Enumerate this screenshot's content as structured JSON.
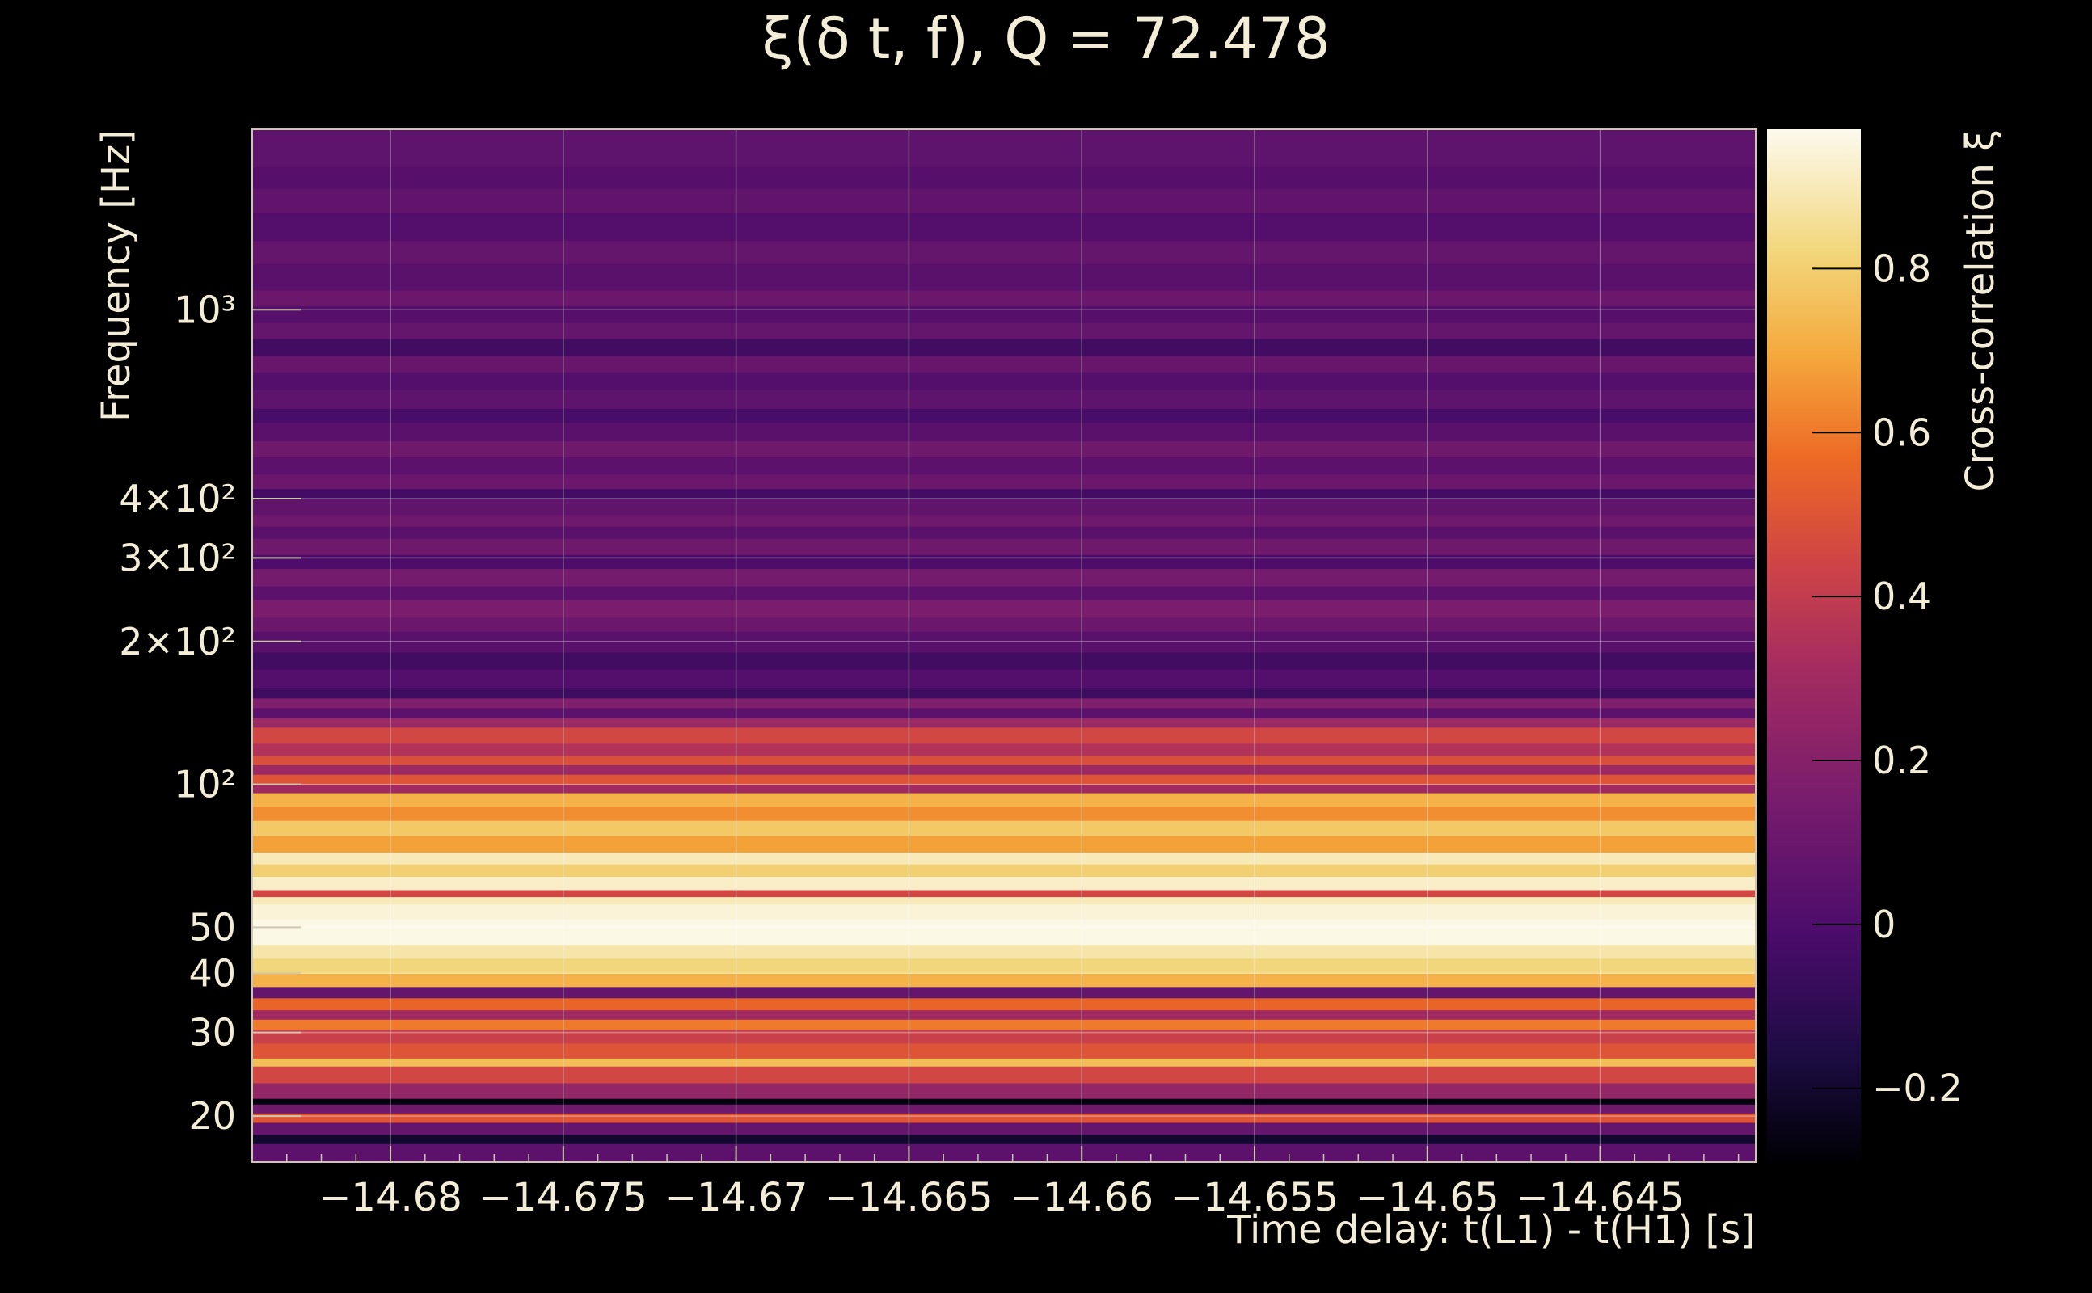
{
  "chart_data": {
    "type": "heatmap",
    "title": "ξ(δ t, f), Q = 72.478",
    "xlabel": "Time delay: t(L1) - t(H1) [s]",
    "ylabel": "Frequency [Hz]",
    "colorbar_label": "Cross-correlation ξ",
    "x_scale": "linear",
    "y_scale": "log",
    "xlim": [
      -14.684,
      -14.6405
    ],
    "ylim": [
      16,
      2400
    ],
    "x_ticks": [
      {
        "value": -14.68,
        "label": "−14.68"
      },
      {
        "value": -14.675,
        "label": "−14.675"
      },
      {
        "value": -14.67,
        "label": "−14.67"
      },
      {
        "value": -14.665,
        "label": "−14.665"
      },
      {
        "value": -14.66,
        "label": "−14.66"
      },
      {
        "value": -14.655,
        "label": "−14.655"
      },
      {
        "value": -14.65,
        "label": "−14.65"
      },
      {
        "value": -14.645,
        "label": "−14.645"
      }
    ],
    "y_ticks": [
      {
        "value": 20,
        "label": "20"
      },
      {
        "value": 30,
        "label": "30"
      },
      {
        "value": 40,
        "label": "40"
      },
      {
        "value": 50,
        "label": "50"
      },
      {
        "value": 100,
        "label": "10²"
      },
      {
        "value": 200,
        "label": "2×10²"
      },
      {
        "value": 300,
        "label": "3×10²"
      },
      {
        "value": 400,
        "label": "4×10²"
      },
      {
        "value": 1000,
        "label": "10³"
      }
    ],
    "colorbar_range": [
      -0.29,
      0.97
    ],
    "colorbar_ticks": [
      {
        "value": -0.2,
        "label": "−0.2"
      },
      {
        "value": 0,
        "label": "0"
      },
      {
        "value": 0.2,
        "label": "0.2"
      },
      {
        "value": 0.4,
        "label": "0.4"
      },
      {
        "value": 0.6,
        "label": "0.6"
      },
      {
        "value": 0.8,
        "label": "0.8"
      }
    ],
    "colormap": "inferno-like",
    "grid": true,
    "bands": [
      {
        "f_low": 16,
        "f_high": 17.5,
        "value": 0.05
      },
      {
        "f_low": 17.5,
        "f_high": 18.3,
        "value": -0.2
      },
      {
        "f_low": 18.3,
        "f_high": 19.4,
        "value": 0.08
      },
      {
        "f_low": 19.4,
        "f_high": 20.3,
        "value": 0.5
      },
      {
        "f_low": 20.3,
        "f_high": 21.2,
        "value": 0.12
      },
      {
        "f_low": 21.2,
        "f_high": 21.8,
        "value": -0.27
      },
      {
        "f_low": 21.8,
        "f_high": 23.5,
        "value": 0.25
      },
      {
        "f_low": 23.5,
        "f_high": 25.5,
        "value": 0.45
      },
      {
        "f_low": 25.5,
        "f_high": 26.5,
        "value": 0.75
      },
      {
        "f_low": 26.5,
        "f_high": 28.5,
        "value": 0.5
      },
      {
        "f_low": 28.5,
        "f_high": 30.5,
        "value": 0.42
      },
      {
        "f_low": 30.5,
        "f_high": 32,
        "value": 0.6
      },
      {
        "f_low": 32,
        "f_high": 33.5,
        "value": 0.3
      },
      {
        "f_low": 33.5,
        "f_high": 35.5,
        "value": 0.55
      },
      {
        "f_low": 35.5,
        "f_high": 37.5,
        "value": 0.08
      },
      {
        "f_low": 37.5,
        "f_high": 40,
        "value": 0.72
      },
      {
        "f_low": 40,
        "f_high": 43,
        "value": 0.82
      },
      {
        "f_low": 43,
        "f_high": 46,
        "value": 0.88
      },
      {
        "f_low": 46,
        "f_high": 52,
        "value": 0.96
      },
      {
        "f_low": 52,
        "f_high": 56,
        "value": 0.94
      },
      {
        "f_low": 56,
        "f_high": 58,
        "value": 0.9
      },
      {
        "f_low": 58,
        "f_high": 60,
        "value": 0.45
      },
      {
        "f_low": 60,
        "f_high": 64,
        "value": 0.92
      },
      {
        "f_low": 64,
        "f_high": 68,
        "value": 0.8
      },
      {
        "f_low": 68,
        "f_high": 72,
        "value": 0.9
      },
      {
        "f_low": 72,
        "f_high": 78,
        "value": 0.68
      },
      {
        "f_low": 78,
        "f_high": 84,
        "value": 0.78
      },
      {
        "f_low": 84,
        "f_high": 90,
        "value": 0.64
      },
      {
        "f_low": 90,
        "f_high": 96,
        "value": 0.72
      },
      {
        "f_low": 96,
        "f_high": 100,
        "value": 0.3
      },
      {
        "f_low": 100,
        "f_high": 105,
        "value": 0.5
      },
      {
        "f_low": 105,
        "f_high": 110,
        "value": 0.28
      },
      {
        "f_low": 110,
        "f_high": 115,
        "value": 0.48
      },
      {
        "f_low": 115,
        "f_high": 122,
        "value": 0.35
      },
      {
        "f_low": 122,
        "f_high": 132,
        "value": 0.45
      },
      {
        "f_low": 132,
        "f_high": 138,
        "value": 0.28
      },
      {
        "f_low": 138,
        "f_high": 145,
        "value": 0.05
      },
      {
        "f_low": 145,
        "f_high": 152,
        "value": 0.18
      },
      {
        "f_low": 152,
        "f_high": 160,
        "value": -0.05
      },
      {
        "f_low": 160,
        "f_high": 175,
        "value": 0.02
      },
      {
        "f_low": 175,
        "f_high": 190,
        "value": -0.04
      },
      {
        "f_low": 190,
        "f_high": 210,
        "value": 0.04
      },
      {
        "f_low": 210,
        "f_high": 225,
        "value": 0.1
      },
      {
        "f_low": 225,
        "f_high": 245,
        "value": 0.16
      },
      {
        "f_low": 245,
        "f_high": 262,
        "value": 0.05
      },
      {
        "f_low": 262,
        "f_high": 285,
        "value": 0.14
      },
      {
        "f_low": 285,
        "f_high": 305,
        "value": 0.0
      },
      {
        "f_low": 305,
        "f_high": 330,
        "value": 0.12
      },
      {
        "f_low": 330,
        "f_high": 350,
        "value": 0.04
      },
      {
        "f_low": 350,
        "f_high": 370,
        "value": 0.12
      },
      {
        "f_low": 370,
        "f_high": 400,
        "value": 0.07
      },
      {
        "f_low": 400,
        "f_high": 420,
        "value": -0.03
      },
      {
        "f_low": 420,
        "f_high": 450,
        "value": 0.1
      },
      {
        "f_low": 450,
        "f_high": 490,
        "value": 0.05
      },
      {
        "f_low": 490,
        "f_high": 530,
        "value": 0.12
      },
      {
        "f_low": 530,
        "f_high": 580,
        "value": 0.04
      },
      {
        "f_low": 580,
        "f_high": 620,
        "value": -0.02
      },
      {
        "f_low": 620,
        "f_high": 680,
        "value": 0.06
      },
      {
        "f_low": 680,
        "f_high": 740,
        "value": 0.02
      },
      {
        "f_low": 740,
        "f_high": 800,
        "value": 0.09
      },
      {
        "f_low": 800,
        "f_high": 870,
        "value": -0.04
      },
      {
        "f_low": 870,
        "f_high": 940,
        "value": 0.08
      },
      {
        "f_low": 940,
        "f_high": 1020,
        "value": 0.03
      },
      {
        "f_low": 1020,
        "f_high": 1100,
        "value": 0.1
      },
      {
        "f_low": 1100,
        "f_high": 1250,
        "value": 0.04
      },
      {
        "f_low": 1250,
        "f_high": 1400,
        "value": 0.08
      },
      {
        "f_low": 1400,
        "f_high": 1600,
        "value": 0.02
      },
      {
        "f_low": 1600,
        "f_high": 1800,
        "value": 0.07
      },
      {
        "f_low": 1800,
        "f_high": 2000,
        "value": 0.03
      },
      {
        "f_low": 2000,
        "f_high": 2400,
        "value": 0.06
      }
    ]
  }
}
